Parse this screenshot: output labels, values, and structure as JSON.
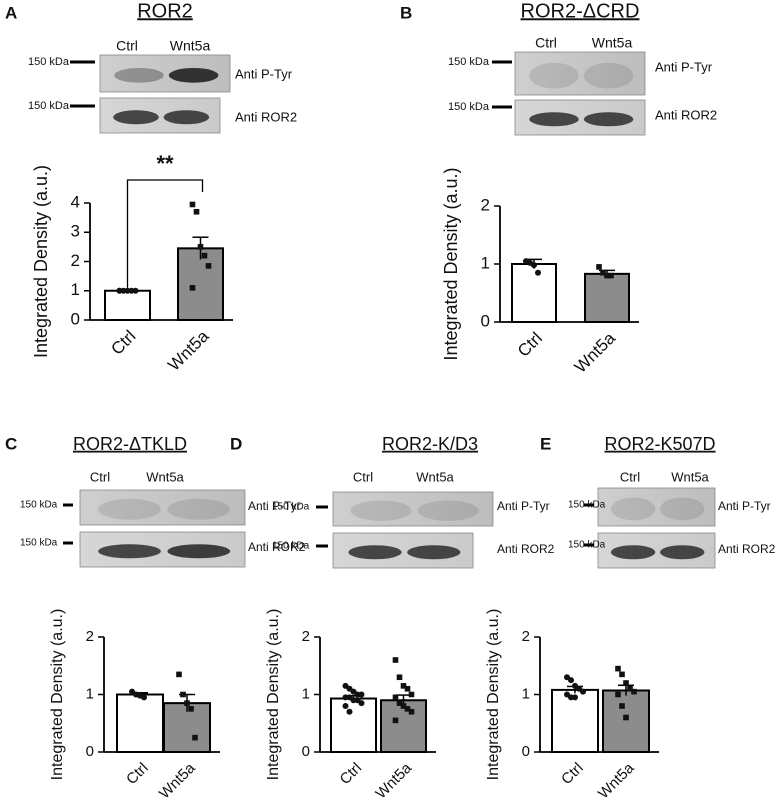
{
  "chart_data": [
    {
      "type": "bar",
      "panel": "A",
      "title": "ROR2",
      "lanes": [
        "Ctrl",
        "Wnt5a"
      ],
      "blots": [
        {
          "marker": "150 kDa",
          "label": "Anti P-Tyr"
        },
        {
          "marker": "150 kDa",
          "label": "Anti ROR2"
        }
      ],
      "ylabel": "Integrated Density (a.u.)",
      "categories": [
        "Ctrl",
        "Wnt5a"
      ],
      "colors": [
        "#ffffff",
        "#8c8c8c"
      ],
      "values": [
        1.0,
        2.45
      ],
      "errors": [
        0.0,
        0.38
      ],
      "points": [
        [
          1.0,
          1.0,
          1.0,
          1.0,
          1.0,
          1.0
        ],
        [
          3.95,
          3.7,
          2.5,
          2.2,
          1.85,
          1.1
        ]
      ],
      "ylim": [
        0,
        4
      ],
      "yticks": [
        0,
        1,
        2,
        3,
        4
      ],
      "significance": "**"
    },
    {
      "type": "bar",
      "panel": "B",
      "title": "ROR2-ΔCRD",
      "lanes": [
        "Ctrl",
        "Wnt5a"
      ],
      "blots": [
        {
          "marker": "150 kDa",
          "label": "Anti P-Tyr"
        },
        {
          "marker": "150 kDa",
          "label": "Anti ROR2"
        }
      ],
      "ylabel": "Integrated Density (a.u.)",
      "categories": [
        "Ctrl",
        "Wnt5a"
      ],
      "colors": [
        "#ffffff",
        "#8c8c8c"
      ],
      "values": [
        1.0,
        0.83
      ],
      "errors": [
        0.08,
        0.06
      ],
      "points": [
        [
          1.05,
          1.02,
          0.98,
          0.85
        ],
        [
          0.95,
          0.85,
          0.8,
          0.8
        ]
      ],
      "ylim": [
        0,
        2
      ],
      "yticks": [
        0,
        1,
        2
      ]
    },
    {
      "type": "bar",
      "panel": "C",
      "title": "ROR2-ΔTKLD",
      "lanes": [
        "Ctrl",
        "Wnt5a"
      ],
      "blots": [
        {
          "marker": "150 kDa",
          "label": "Anti P-Tyr"
        },
        {
          "marker": "150 kDa",
          "label": "Anti ROR2"
        }
      ],
      "ylabel": "Integrated Density (a.u.)",
      "categories": [
        "Ctrl",
        "Wnt5a"
      ],
      "colors": [
        "#ffffff",
        "#8c8c8c"
      ],
      "values": [
        1.0,
        0.85
      ],
      "errors": [
        0.03,
        0.15
      ],
      "points": [
        [
          1.05,
          1.0,
          0.98,
          0.95
        ],
        [
          1.35,
          1.0,
          0.85,
          0.75,
          0.25
        ]
      ],
      "ylim": [
        0,
        2
      ],
      "yticks": [
        0,
        1,
        2
      ]
    },
    {
      "type": "bar",
      "panel": "D",
      "title": "ROR2-K/D3",
      "lanes": [
        "Ctrl",
        "Wnt5a"
      ],
      "blots": [
        {
          "marker": "150 kDa",
          "label": "Anti P-Tyr"
        },
        {
          "marker": "150 kDa",
          "label": "Anti ROR2"
        }
      ],
      "ylabel": "Integrated Density (a.u.)",
      "categories": [
        "Ctrl",
        "Wnt5a"
      ],
      "colors": [
        "#ffffff",
        "#8c8c8c"
      ],
      "values": [
        0.93,
        0.9
      ],
      "errors": [
        0.05,
        0.09
      ],
      "points": [
        [
          1.15,
          1.1,
          1.05,
          1.0,
          1.0,
          0.95,
          0.95,
          0.9,
          0.9,
          0.85,
          0.8,
          0.7
        ],
        [
          1.6,
          1.3,
          1.15,
          1.1,
          1.0,
          0.95,
          0.85,
          0.8,
          0.75,
          0.7,
          0.55
        ]
      ],
      "ylim": [
        0,
        2
      ],
      "yticks": [
        0,
        1,
        2
      ]
    },
    {
      "type": "bar",
      "panel": "E",
      "title": "ROR2-K507D",
      "lanes": [
        "Ctrl",
        "Wnt5a"
      ],
      "blots": [
        {
          "marker": "150 kDa",
          "label": "Anti P-Tyr"
        },
        {
          "marker": "150 kDa",
          "label": "Anti ROR2"
        }
      ],
      "ylabel": "Integrated Density (a.u.)",
      "categories": [
        "Ctrl",
        "Wnt5a"
      ],
      "colors": [
        "#ffffff",
        "#8c8c8c"
      ],
      "values": [
        1.08,
        1.07
      ],
      "errors": [
        0.06,
        0.09
      ],
      "points": [
        [
          1.3,
          1.25,
          1.15,
          1.1,
          1.05,
          1.0,
          0.95,
          0.95
        ],
        [
          1.45,
          1.35,
          1.2,
          1.1,
          1.05,
          1.0,
          0.8,
          0.6
        ]
      ],
      "ylim": [
        0,
        2
      ],
      "yticks": [
        0,
        1,
        2
      ]
    }
  ]
}
